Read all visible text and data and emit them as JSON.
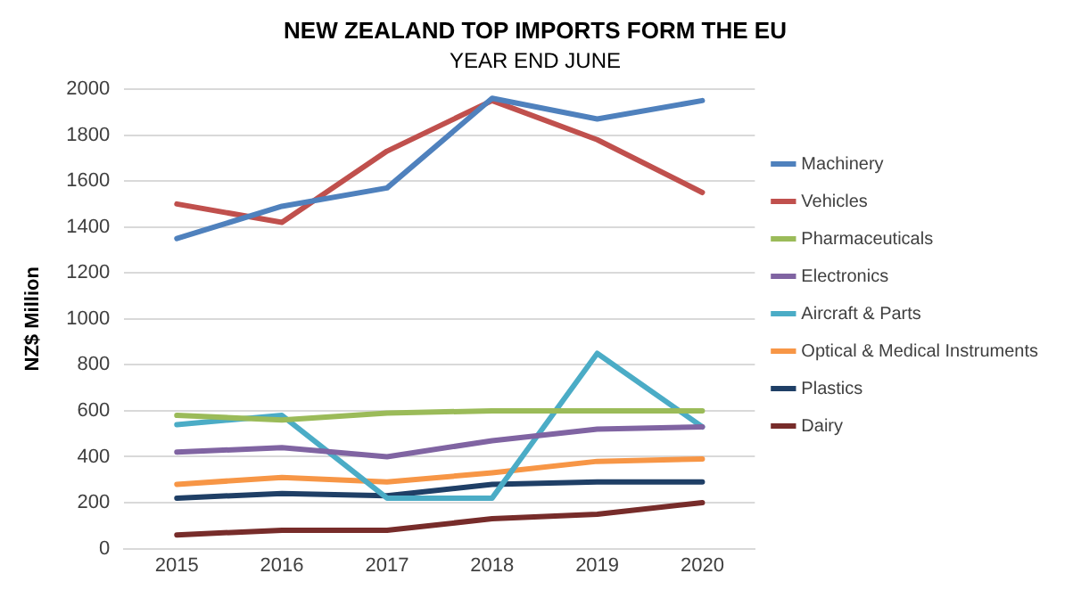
{
  "chart_data": {
    "type": "line",
    "title": "NEW ZEALAND TOP IMPORTS FORM THE EU",
    "subtitle": "YEAR END JUNE",
    "ylabel": "NZ$ Million",
    "categories": [
      "2015",
      "2016",
      "2017",
      "2018",
      "2019",
      "2020"
    ],
    "series": [
      {
        "name": "Machinery",
        "color": "#4f81bd",
        "values": [
          1350,
          1490,
          1570,
          1960,
          1870,
          1950
        ]
      },
      {
        "name": "Vehicles",
        "color": "#c0504d",
        "values": [
          1500,
          1420,
          1730,
          1950,
          1780,
          1550
        ]
      },
      {
        "name": "Pharmaceuticals",
        "color": "#9bbb59",
        "values": [
          580,
          560,
          590,
          600,
          600,
          600
        ]
      },
      {
        "name": "Electronics",
        "color": "#8064a2",
        "values": [
          420,
          440,
          400,
          470,
          520,
          530
        ]
      },
      {
        "name": "Aircraft & Parts",
        "color": "#4bacc6",
        "values": [
          540,
          580,
          220,
          220,
          850,
          530
        ]
      },
      {
        "name": "Optical & Medical Instruments",
        "color": "#f79646",
        "values": [
          280,
          310,
          290,
          330,
          380,
          390
        ]
      },
      {
        "name": "Plastics",
        "color": "#1f3f66",
        "values": [
          220,
          240,
          230,
          280,
          290,
          290
        ]
      },
      {
        "name": "Dairy",
        "color": "#772c2a",
        "values": [
          60,
          80,
          80,
          130,
          150,
          200
        ]
      }
    ],
    "ylim": [
      0,
      2000
    ],
    "yticks": [
      0,
      200,
      400,
      600,
      800,
      1000,
      1200,
      1400,
      1600,
      1800,
      2000
    ],
    "grid": "y",
    "legend": "right",
    "marker": "none",
    "line_style": "solid"
  }
}
